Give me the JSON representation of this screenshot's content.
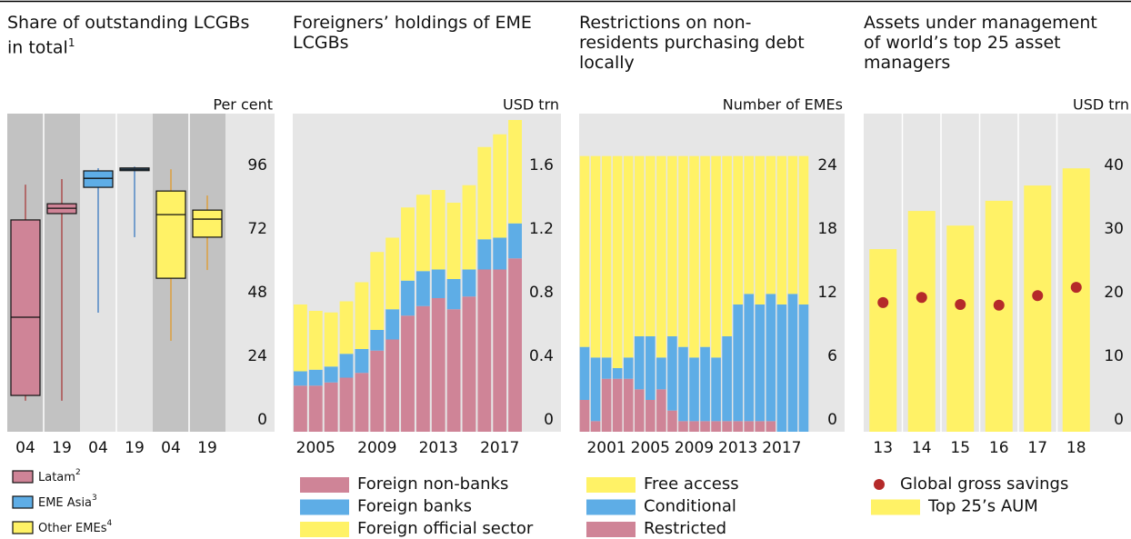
{
  "chart_data": [
    {
      "type": "box",
      "title": "Share of outstanding LCGBs in total",
      "title_note": "1",
      "unit": "Per cent",
      "categories": [
        "04",
        "19",
        "04",
        "19",
        "04",
        "19"
      ],
      "ylim": [
        0,
        120
      ],
      "yticks": [
        0,
        24,
        48,
        72,
        96
      ],
      "series": [
        {
          "name": "Latam",
          "note": "2",
          "color": "#cf8497",
          "whisker_color": "#a83c3c",
          "background": "#c2c2c2",
          "boxes": [
            {
              "min": 11.7,
              "q1": 13.7,
              "median": 43.2,
              "q3": 79.9,
              "max": 93.2
            },
            {
              "min": 11.7,
              "q1": 82.3,
              "median": 84.3,
              "q3": 86,
              "max": 95.3
            }
          ]
        },
        {
          "name": "EME Asia",
          "note": "3",
          "color": "#5eade6",
          "whisker_color": "#3a78c0",
          "background": "#e3e3e3",
          "boxes": [
            {
              "min": 44.9,
              "q1": 92.2,
              "median": 95.6,
              "q3": 98.4,
              "max": 99.4
            },
            {
              "min": 73.4,
              "q1": 98.5,
              "median": 99,
              "q3": 99.5,
              "max": 100
            }
          ]
        },
        {
          "name": "Other EMEs",
          "note": "4",
          "color": "#fff266",
          "whisker_color": "#e09a2a",
          "background": "#c2c2c2",
          "boxes": [
            {
              "min": 34.3,
              "q1": 57.9,
              "median": 81.9,
              "q3": 90.8,
              "max": 99
            },
            {
              "min": 61,
              "q1": 73.4,
              "median": 80.2,
              "q3": 83.6,
              "max": 89.1
            }
          ]
        }
      ]
    },
    {
      "type": "stacked_bar",
      "title": "Foreigners’ holdings of EME LCGBs",
      "unit": "USD trn",
      "categories": [
        null,
        "2005",
        null,
        null,
        null,
        "2009",
        null,
        null,
        null,
        "2013",
        null,
        null,
        null,
        "2017",
        null
      ],
      "ylim": [
        0,
        2
      ],
      "yticks": [
        0,
        0.4,
        0.8,
        1.2,
        1.6
      ],
      "series": [
        {
          "name": "Foreign non-banks",
          "color": "#cf8497",
          "values": [
            0.29,
            0.29,
            0.31,
            0.34,
            0.37,
            0.51,
            0.58,
            0.73,
            0.79,
            0.84,
            0.77,
            0.85,
            1.02,
            1.02,
            1.09
          ]
        },
        {
          "name": "Foreign banks",
          "color": "#5eade6",
          "values": [
            0.09,
            0.1,
            0.1,
            0.15,
            0.15,
            0.13,
            0.19,
            0.22,
            0.22,
            0.18,
            0.19,
            0.17,
            0.19,
            0.2,
            0.22
          ]
        },
        {
          "name": "Foreign official sector",
          "color": "#fff266",
          "values": [
            0.42,
            0.37,
            0.34,
            0.33,
            0.42,
            0.49,
            0.45,
            0.46,
            0.48,
            0.5,
            0.48,
            0.53,
            0.58,
            0.65,
            0.65
          ]
        }
      ]
    },
    {
      "type": "stacked_bar",
      "title": "Restrictions on non-residents purchasing debt locally",
      "unit": "Number of EMEs",
      "categories": [
        null,
        null,
        "2001",
        null,
        null,
        null,
        "2005",
        null,
        null,
        null,
        "2009",
        null,
        null,
        null,
        "2013",
        null,
        null,
        null,
        "2017",
        null,
        null
      ],
      "ylim": [
        0,
        30
      ],
      "yticks": [
        0,
        6,
        12,
        18,
        24
      ],
      "series": [
        {
          "name": "Free access",
          "color": "#fff266",
          "values": [
            18,
            19,
            19,
            20,
            19,
            17,
            17,
            19,
            17,
            18,
            19,
            18,
            19,
            17,
            14,
            13,
            14,
            13,
            14,
            13,
            14
          ]
        },
        {
          "name": "Conditional",
          "color": "#5eade6",
          "values": [
            5,
            6,
            2,
            1,
            2,
            5,
            6,
            3,
            7,
            7,
            6,
            7,
            6,
            8,
            11,
            12,
            11,
            12,
            12,
            13,
            12
          ]
        },
        {
          "name": "Restricted",
          "color": "#cf8497",
          "values": [
            3,
            1,
            5,
            5,
            5,
            4,
            3,
            4,
            2,
            1,
            1,
            1,
            1,
            1,
            1,
            1,
            1,
            1,
            0,
            0,
            0
          ]
        }
      ]
    },
    {
      "type": "bar_dot",
      "title": "Assets under management of world’s top 25 asset managers",
      "unit": "USD trn",
      "categories": [
        "13",
        "14",
        "15",
        "16",
        "17",
        "18"
      ],
      "ylim": [
        0,
        50
      ],
      "yticks": [
        0,
        10,
        20,
        30,
        40
      ],
      "series": [
        {
          "name": "Global gross savings",
          "mark": "dot",
          "color": "#b52a2a",
          "values": [
            20.3,
            21.1,
            20,
            19.9,
            21.4,
            22.7
          ]
        },
        {
          "name": "Top 25’s AUM",
          "mark": "bar",
          "color": "#fff266",
          "values": [
            28.7,
            34.7,
            32.4,
            36.3,
            38.7,
            41.4
          ]
        }
      ]
    }
  ]
}
